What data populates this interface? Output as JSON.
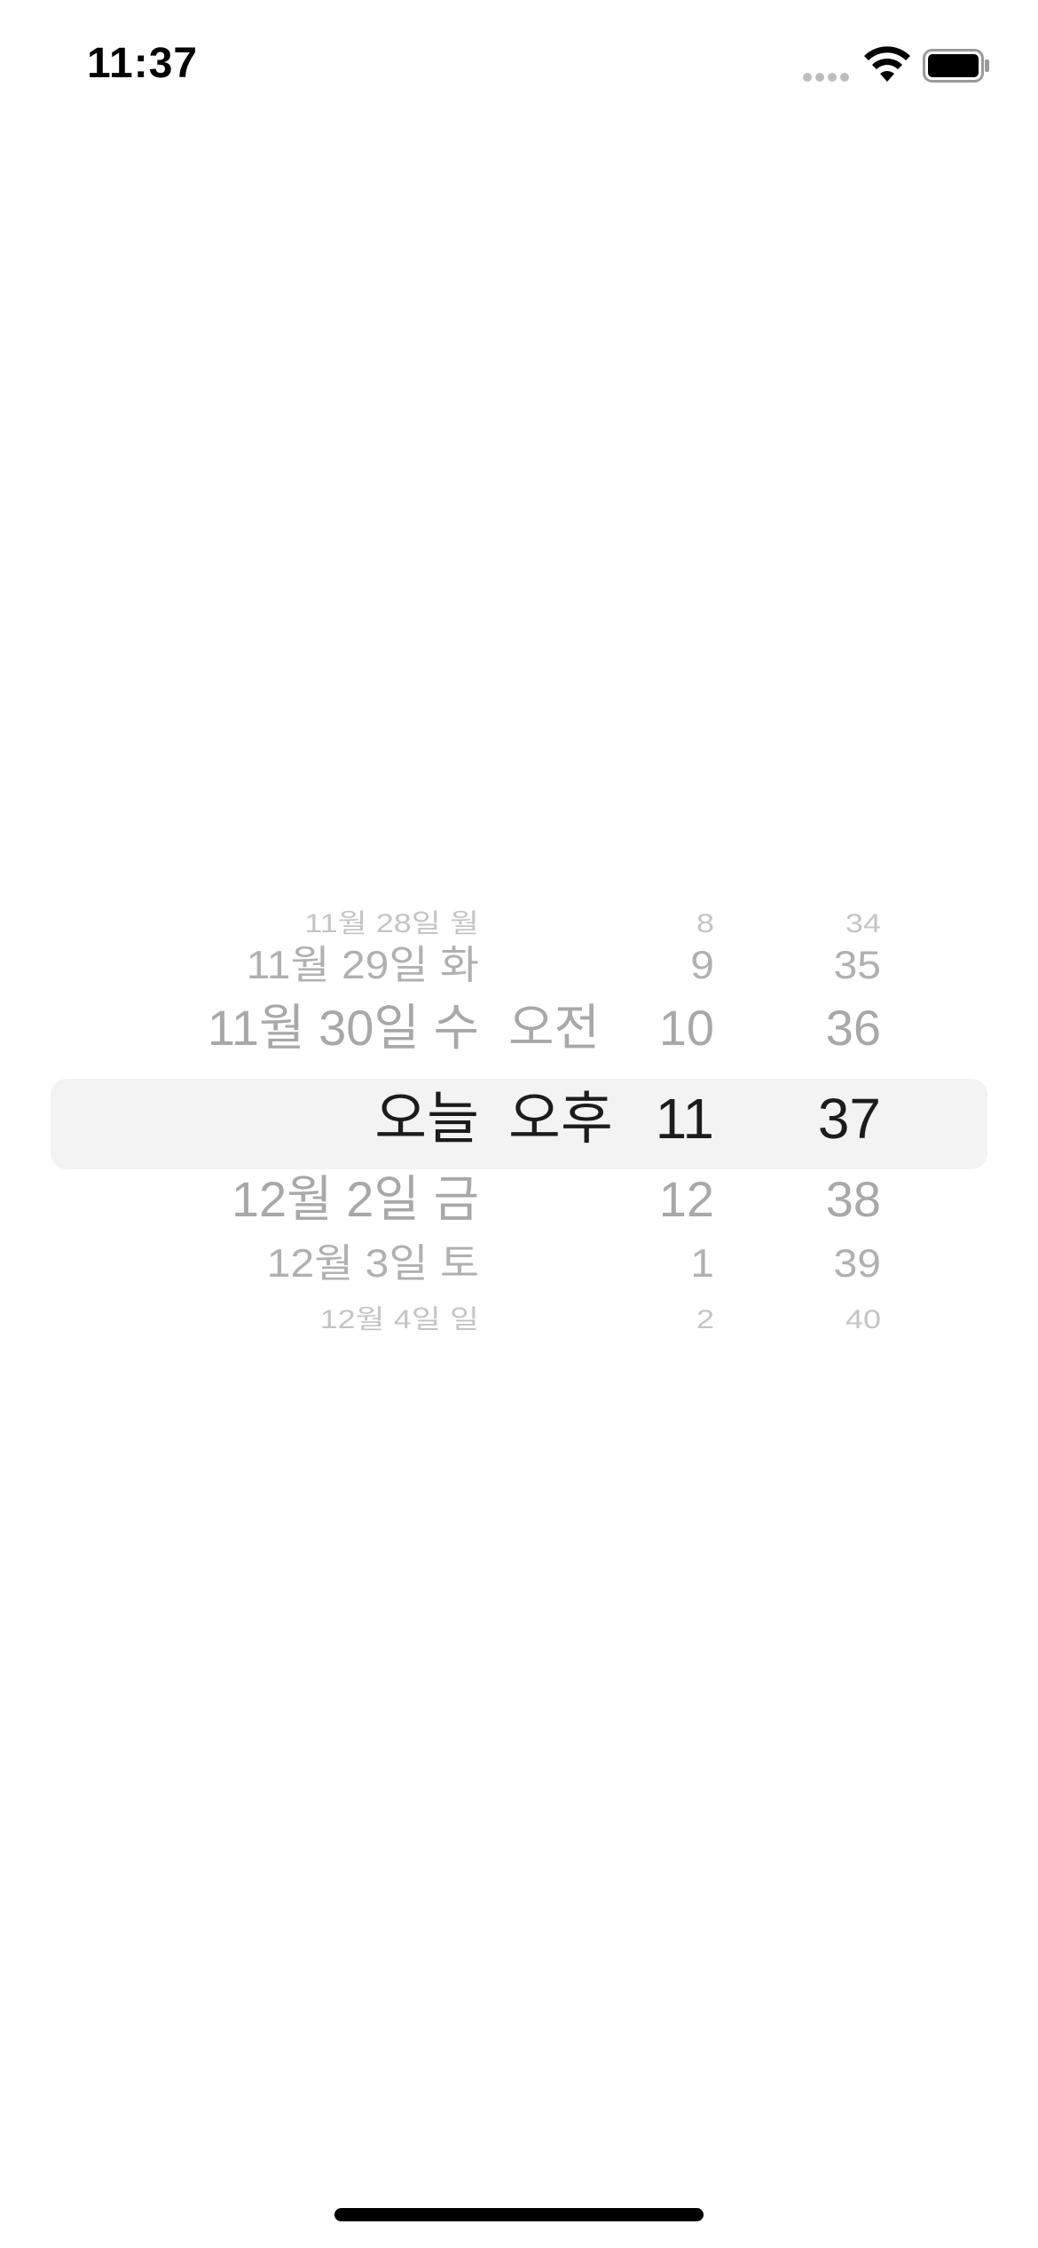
{
  "status_bar": {
    "time": "11:37",
    "icons": [
      "signal-icon",
      "wifi-icon",
      "battery-icon"
    ]
  },
  "picker": {
    "date": [
      "11월 28일 월",
      "11월 29일 화",
      "11월 30일 수",
      "오늘",
      "12월 2일 금",
      "12월 3일 토",
      "12월 4일 일"
    ],
    "ampm": [
      "",
      "",
      "오전",
      "오후",
      "",
      "",
      ""
    ],
    "hour": [
      "8",
      "9",
      "10",
      "11",
      "12",
      "1",
      "2"
    ],
    "minute": [
      "34",
      "35",
      "36",
      "37",
      "38",
      "39",
      "40"
    ],
    "selected": {
      "date": "오늘",
      "ampm": "오후",
      "hour": "11",
      "minute": "37"
    }
  }
}
